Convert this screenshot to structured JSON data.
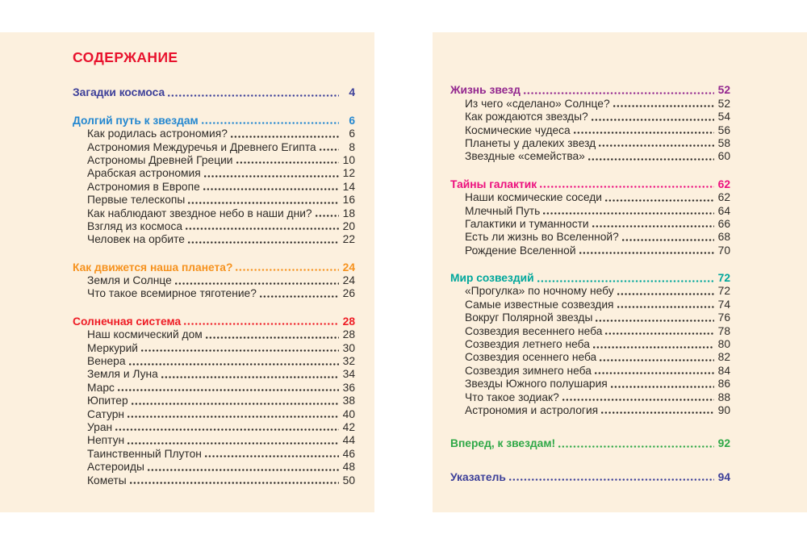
{
  "title": "СОДЕРЖАНИЕ",
  "palette": {
    "heading_red": "#e8122d",
    "body_text": "#2e2b28",
    "page_background": "#fcf0de",
    "backdrop": "#ffffff"
  },
  "left_page": {
    "sections": [
      {
        "title": "Загадки космоса",
        "page": "4",
        "color": "#3c3f99",
        "items": []
      },
      {
        "title": "Долгий путь к звездам",
        "page": "6",
        "color": "#2387d0",
        "items": [
          {
            "label": "Как родилась астрономия?",
            "page": "6"
          },
          {
            "label": "Астрономия Междуречья и Древнего Египта",
            "page": "8"
          },
          {
            "label": "Астрономы Древней Греции",
            "page": "10"
          },
          {
            "label": "Арабская астрономия",
            "page": "12"
          },
          {
            "label": "Астрономия в Европе",
            "page": "14"
          },
          {
            "label": "Первые телескопы",
            "page": "16"
          },
          {
            "label": "Как наблюдают звездное небо в наши дни?",
            "page": "18"
          },
          {
            "label": "Взгляд из космоса",
            "page": "20"
          },
          {
            "label": "Человек на орбите",
            "page": "22"
          }
        ]
      },
      {
        "title": "Как движется наша планета?",
        "page": "24",
        "color": "#f6921e",
        "items": [
          {
            "label": "Земля и Солнце",
            "page": "24"
          },
          {
            "label": "Что такое всемирное тяготение?",
            "page": "26"
          }
        ]
      },
      {
        "title": "Солнечная система",
        "page": "28",
        "color": "#ee1c25",
        "items": [
          {
            "label": "Наш космический дом",
            "page": "28"
          },
          {
            "label": "Меркурий",
            "page": "30"
          },
          {
            "label": "Венера",
            "page": "32"
          },
          {
            "label": "Земля и Луна",
            "page": "34"
          },
          {
            "label": "Марс",
            "page": "36"
          },
          {
            "label": "Юпитер",
            "page": "38"
          },
          {
            "label": "Сатурн",
            "page": "40"
          },
          {
            "label": "Уран",
            "page": "42"
          },
          {
            "label": "Нептун",
            "page": "44"
          },
          {
            "label": "Таинственный Плутон",
            "page": "46"
          },
          {
            "label": "Астероиды",
            "page": "48"
          },
          {
            "label": "Кометы",
            "page": "50"
          }
        ]
      }
    ]
  },
  "right_page": {
    "sections": [
      {
        "title": "Жизнь звезд",
        "page": "52",
        "color": "#93278f",
        "items": [
          {
            "label": "Из чего «сделано» Солнце?",
            "page": "52"
          },
          {
            "label": "Как рождаются звезды?",
            "page": "54"
          },
          {
            "label": "Космические чудеса",
            "page": "56"
          },
          {
            "label": "Планеты у далеких звезд",
            "page": "58"
          },
          {
            "label": "Звездные «семейства»",
            "page": "60"
          }
        ]
      },
      {
        "title": "Тайны галактик",
        "page": "62",
        "color": "#ec0f7e",
        "items": [
          {
            "label": "Наши космические соседи",
            "page": "62"
          },
          {
            "label": "Млечный Путь",
            "page": "64"
          },
          {
            "label": "Галактики и туманности",
            "page": "66"
          },
          {
            "label": "Есть ли жизнь во Вселенной?",
            "page": "68"
          },
          {
            "label": "Рождение Вселенной",
            "page": "70"
          }
        ]
      },
      {
        "title": "Мир созвездий",
        "page": "72",
        "color": "#00a79c",
        "items": [
          {
            "label": "«Прогулка» по ночному небу",
            "page": "72"
          },
          {
            "label": "Самые известные созвездия",
            "page": "74"
          },
          {
            "label": "Вокруг Полярной звезды",
            "page": "76"
          },
          {
            "label": "Созвездия весеннего неба",
            "page": "78"
          },
          {
            "label": "Созвездия летнего неба",
            "page": "80"
          },
          {
            "label": "Созвездия осеннего неба",
            "page": "82"
          },
          {
            "label": "Созвездия зимнего неба",
            "page": "84"
          },
          {
            "label": "Звезды Южного полушария",
            "page": "86"
          },
          {
            "label": "Что такое зодиак?",
            "page": "88"
          },
          {
            "label": "Астрономия и астрология",
            "page": "90"
          }
        ]
      },
      {
        "title": "Вперед, к звездам!",
        "page": "92",
        "color": "#2fa847",
        "items": []
      },
      {
        "title": "Указатель",
        "page": "94",
        "color": "#3c3f99",
        "items": []
      }
    ]
  }
}
